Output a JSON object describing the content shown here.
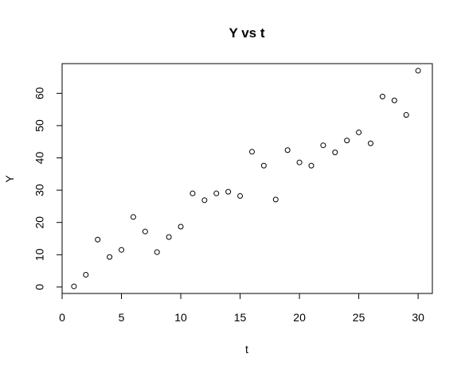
{
  "chart_data": {
    "type": "scatter",
    "title": "Y vs t",
    "xlabel": "t",
    "ylabel": "Y",
    "xlim": [
      0.0,
      31.2
    ],
    "ylim": [
      -2.0,
      69.2
    ],
    "xticks": [
      0,
      5,
      10,
      15,
      20,
      25,
      30
    ],
    "yticks": [
      0,
      10,
      20,
      30,
      40,
      50,
      60
    ],
    "grid": false,
    "series": [
      {
        "x": [
          1,
          2,
          3,
          4,
          5,
          6,
          7,
          8,
          9,
          10,
          11,
          12,
          13,
          14,
          15,
          16,
          17,
          18,
          19,
          20,
          21,
          22,
          23,
          24,
          25,
          26,
          27,
          28,
          29,
          30
        ],
        "y": [
          0.2,
          3.8,
          14.7,
          9.3,
          11.5,
          21.7,
          17.2,
          10.8,
          15.5,
          18.7,
          29.0,
          26.9,
          29.0,
          29.5,
          28.2,
          41.9,
          37.6,
          27.1,
          42.4,
          38.6,
          37.6,
          43.9,
          41.7,
          45.4,
          47.9,
          44.5,
          59.0,
          57.8,
          53.3,
          67.0
        ]
      }
    ]
  }
}
